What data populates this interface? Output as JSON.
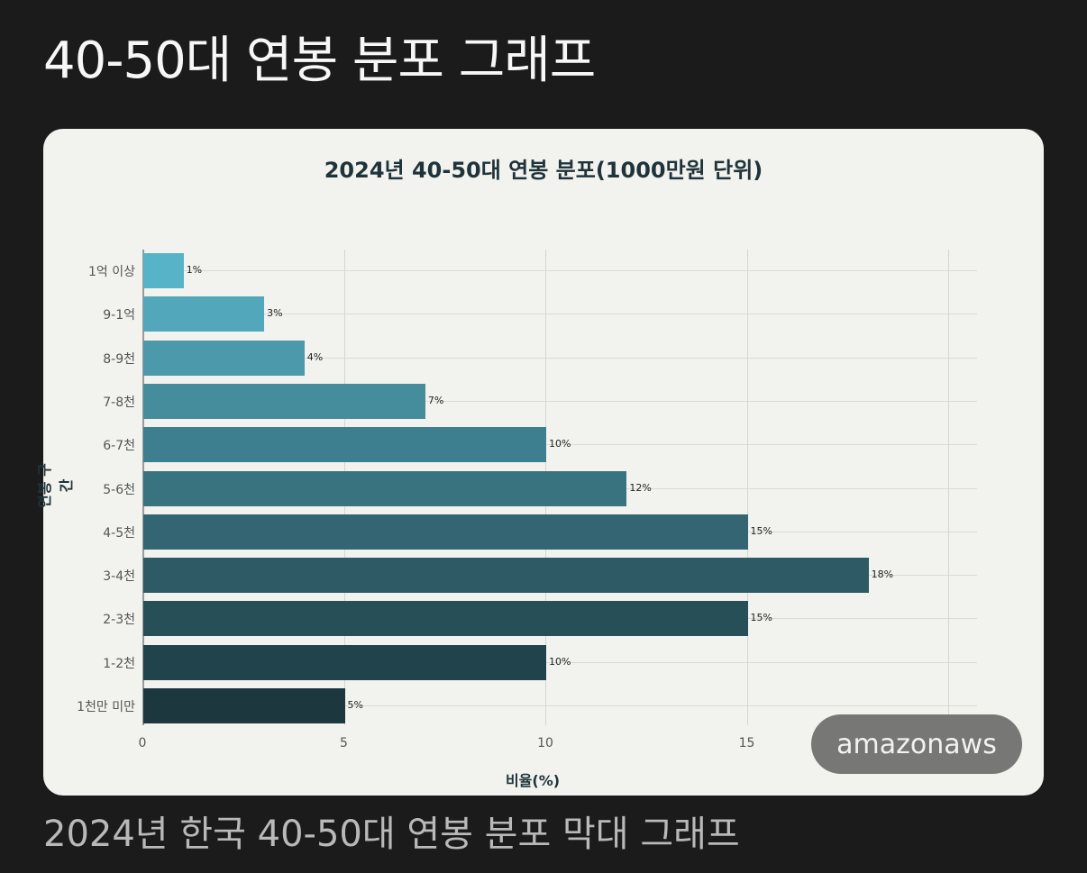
{
  "page": {
    "title": "40-50대 연봉 분포 그래프",
    "caption": "2024년 한국 40-50대 연봉 분포 막대 그래프",
    "watermark": "amazonaws"
  },
  "chart_data": {
    "type": "bar",
    "orientation": "horizontal",
    "title": "2024년 40-50대 연봉 분포(1000만원 단위)",
    "xlabel": "비율(%)",
    "ylabel": "연봉 구간",
    "xlim": [
      0,
      20.7
    ],
    "xticks": [
      "0",
      "5",
      "10",
      "15"
    ],
    "grid": true,
    "legend": null,
    "categories": [
      "1억 이상",
      "9-1억",
      "8-9천",
      "7-8천",
      "6-7천",
      "5-6천",
      "4-5천",
      "3-4천",
      "2-3천",
      "1-2천",
      "1천만 미만"
    ],
    "values": [
      1,
      3,
      4,
      7,
      10,
      12,
      15,
      18,
      15,
      10,
      5
    ],
    "value_labels": [
      "1%",
      "3%",
      "4%",
      "7%",
      "10%",
      "12%",
      "15%",
      "18%",
      "15%",
      "10%",
      "5%"
    ],
    "colors": [
      "#57b4c8",
      "#52a7bb",
      "#4b99ab",
      "#458c9c",
      "#3e7f8f",
      "#3a7380",
      "#336672",
      "#2d5a65",
      "#274f58",
      "#21434b",
      "#1c373e"
    ]
  }
}
